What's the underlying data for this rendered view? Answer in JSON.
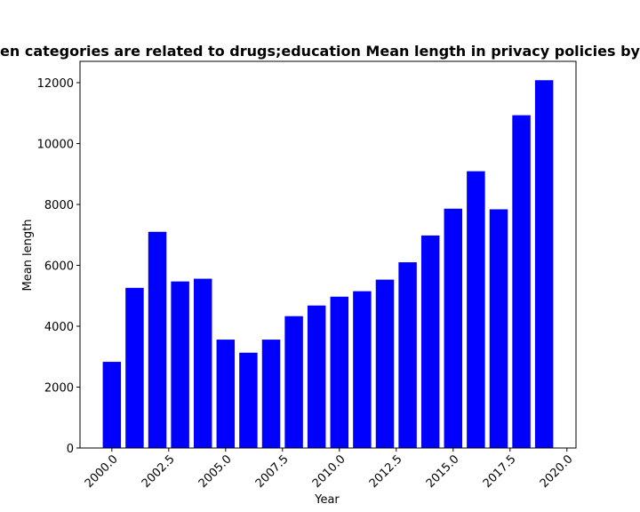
{
  "chart_data": {
    "type": "bar",
    "title": "Mean length of privacy policies by year when categories are related to drugs;education",
    "title_visible": "en categories are related to drugs;education Mean length in privacy policies by",
    "xlabel": "Year",
    "ylabel": "Mean length",
    "bar_color": "#0000ff",
    "x": [
      2000,
      2001,
      2002,
      2003,
      2004,
      2005,
      2006,
      2007,
      2008,
      2009,
      2010,
      2011,
      2012,
      2013,
      2014,
      2015,
      2016,
      2017,
      2018,
      2019
    ],
    "values": [
      2830,
      5260,
      7100,
      5470,
      5560,
      3560,
      3130,
      3560,
      4330,
      4680,
      4970,
      5150,
      5530,
      6100,
      6980,
      7860,
      9090,
      7840,
      10930,
      12080
    ],
    "xlim": [
      1998.6,
      2020.4
    ],
    "ylim": [
      0,
      12700
    ],
    "xticks": [
      2000.0,
      2002.5,
      2005.0,
      2007.5,
      2010.0,
      2012.5,
      2015.0,
      2017.5,
      2020.0
    ],
    "xtick_labels": [
      "2000.0",
      "2002.5",
      "2005.0",
      "2007.5",
      "2010.0",
      "2012.5",
      "2015.0",
      "2017.5",
      "2020.0"
    ],
    "yticks": [
      0,
      2000,
      4000,
      6000,
      8000,
      10000,
      12000
    ],
    "ytick_labels": [
      "0",
      "2000",
      "4000",
      "6000",
      "8000",
      "10000",
      "12000"
    ],
    "grid": false,
    "legend": false
  }
}
